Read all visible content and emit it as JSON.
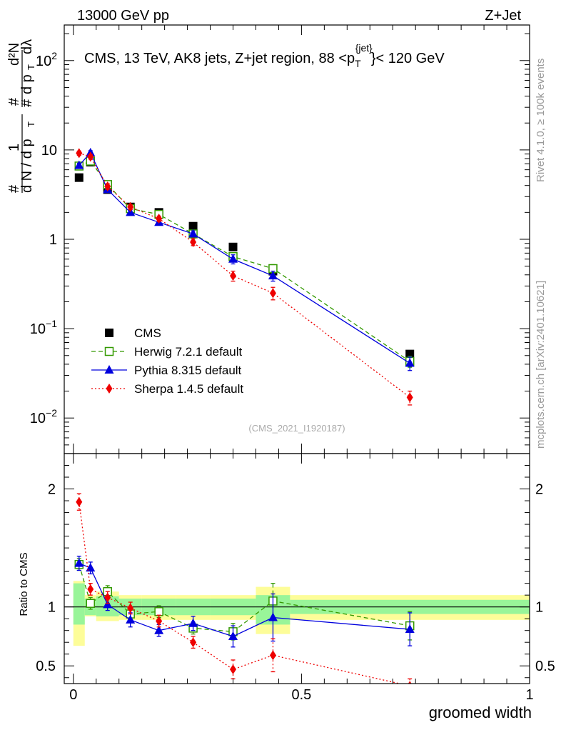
{
  "header": {
    "left": "13000 GeV pp",
    "right": "Z+Jet"
  },
  "side_text": {
    "rivet": "Rivet 4.1.0, ≥ 100k events",
    "mcplots": "mcplots.cern.ch [arXiv:2401.10621]"
  },
  "analysis_id": "(CMS_2021_I1920187)",
  "colors": {
    "cms": "#000000",
    "herwig": "#339900",
    "pythia": "#0000dd",
    "sherpa": "#ee0000",
    "band_inner": "#99f599",
    "band_outer": "#fdfd99"
  },
  "chart_data": [
    {
      "type": "line",
      "title": "CMS, 13 TeV, AK8 jets, Z+jet region, 88 < p_T^{jet} < 120 GeV",
      "title_text": {
        "main": "CMS, 13 TeV, AK8 jets, Z+jet region, 88 <",
        "p": "p",
        "sub": "T",
        "sup": "{jet}",
        "tail": "}< 120 GeV"
      },
      "ylabel": "1/dN/dp_T d^2N/dp_T dλ",
      "ylabel_text": {
        "n1": "#",
        "n2": "1",
        "d1": "d N / d p",
        "dsub": "T",
        "n3": "#",
        "n4": "d²N",
        "n5": "#",
        "d2": "d p",
        "d2sub": "T",
        "d3": "dλ"
      },
      "yscale": "log",
      "ylim": [
        0.004,
        250
      ],
      "xlim": [
        -0.02,
        1.0
      ],
      "y_ticks": [
        {
          "v": 0.01,
          "base": "10",
          "exp": "−2"
        },
        {
          "v": 0.1,
          "base": "10",
          "exp": "−1"
        },
        {
          "v": 1,
          "base": "1",
          "exp": ""
        },
        {
          "v": 10,
          "base": "10",
          "exp": ""
        },
        {
          "v": 100,
          "base": "10",
          "exp": "2"
        }
      ],
      "x": [
        0.0125,
        0.0375,
        0.075,
        0.125,
        0.1875,
        0.2625,
        0.35,
        0.4375,
        0.7375
      ],
      "xerr": [
        0.0125,
        0.0125,
        0.025,
        0.025,
        0.0375,
        0.0375,
        0.05,
        0.0375,
        0.2625
      ],
      "series": [
        {
          "name": "CMS",
          "key": "cms",
          "marker": "square",
          "values": [
            4.9,
            7.3,
            3.6,
            2.3,
            2.0,
            1.4,
            0.82,
            0.44,
            0.052
          ]
        },
        {
          "name": "Herwig 7.2.1 default",
          "key": "herwig",
          "marker": "open-square",
          "dash": "dashed",
          "values": [
            6.6,
            7.5,
            4.1,
            2.2,
            1.9,
            1.15,
            0.64,
            0.47,
            0.043
          ],
          "err": [
            0.4,
            0.4,
            0.25,
            0.15,
            0.12,
            0.08,
            0.06,
            0.05,
            0.006
          ]
        },
        {
          "name": "Pythia 8.315 default",
          "key": "pythia",
          "marker": "triangle",
          "dash": "solid",
          "values": [
            6.7,
            9.3,
            3.6,
            2.0,
            1.55,
            1.15,
            0.6,
            0.39,
            0.041
          ],
          "err": [
            0.4,
            0.5,
            0.25,
            0.14,
            0.11,
            0.09,
            0.07,
            0.05,
            0.007
          ]
        },
        {
          "name": "Sherpa 1.4.5 default",
          "key": "sherpa",
          "marker": "diamond",
          "dash": "dotted",
          "values": [
            9.2,
            8.4,
            3.9,
            2.3,
            1.7,
            0.93,
            0.39,
            0.25,
            0.017
          ],
          "err": [
            0.5,
            0.5,
            0.28,
            0.15,
            0.12,
            0.08,
            0.05,
            0.04,
            0.003
          ]
        }
      ],
      "legend": [
        {
          "label": "CMS",
          "key": "cms"
        },
        {
          "label": "Herwig 7.2.1 default",
          "key": "herwig"
        },
        {
          "label": "Pythia 8.315 default",
          "key": "pythia"
        },
        {
          "label": "Sherpa 1.4.5 default",
          "key": "sherpa"
        }
      ]
    },
    {
      "type": "line",
      "ylabel": "Ratio to CMS",
      "xlabel": "groomed width",
      "ylim": [
        0.35,
        2.3
      ],
      "xlim": [
        -0.02,
        1.0
      ],
      "reference": 1.0,
      "y_ticks": [
        {
          "v": 0.5,
          "label": "0.5"
        },
        {
          "v": 1,
          "label": "1"
        },
        {
          "v": 2,
          "label": "2"
        }
      ],
      "x_ticks": [
        {
          "v": 0,
          "label": "0"
        },
        {
          "v": 0.5,
          "label": "0.5"
        },
        {
          "v": 1,
          "label": "1"
        }
      ],
      "bands": [
        {
          "x0": 0.0,
          "x1": 0.025,
          "inner": [
            0.85,
            1.2
          ],
          "outer": [
            0.67,
            1.22
          ]
        },
        {
          "x0": 0.025,
          "x1": 0.05,
          "inner": [
            0.93,
            1.07
          ],
          "outer": [
            0.92,
            1.1
          ]
        },
        {
          "x0": 0.05,
          "x1": 0.1,
          "inner": [
            0.92,
            1.09
          ],
          "outer": [
            0.88,
            1.13
          ]
        },
        {
          "x0": 0.1,
          "x1": 0.15,
          "inner": [
            0.93,
            1.07
          ],
          "outer": [
            0.89,
            1.1
          ]
        },
        {
          "x0": 0.15,
          "x1": 0.225,
          "inner": [
            0.93,
            1.07
          ],
          "outer": [
            0.89,
            1.1
          ]
        },
        {
          "x0": 0.225,
          "x1": 0.3,
          "inner": [
            0.93,
            1.07
          ],
          "outer": [
            0.89,
            1.1
          ]
        },
        {
          "x0": 0.3,
          "x1": 0.4,
          "inner": [
            0.93,
            1.07
          ],
          "outer": [
            0.89,
            1.1
          ]
        },
        {
          "x0": 0.4,
          "x1": 0.475,
          "inner": [
            0.85,
            1.1
          ],
          "outer": [
            0.77,
            1.17
          ]
        },
        {
          "x0": 0.475,
          "x1": 1.0,
          "inner": [
            0.94,
            1.06
          ],
          "outer": [
            0.89,
            1.1
          ]
        }
      ],
      "x": [
        0.0125,
        0.0375,
        0.075,
        0.125,
        0.1875,
        0.2625,
        0.35,
        0.4375,
        0.7375
      ],
      "series": [
        {
          "name": "Herwig 7.2.1 default",
          "key": "herwig",
          "marker": "open-square",
          "dash": "dashed",
          "values": [
            1.36,
            1.03,
            1.13,
            0.94,
            0.96,
            0.82,
            0.79,
            1.05,
            0.84
          ],
          "err": [
            0.05,
            0.05,
            0.05,
            0.05,
            0.05,
            0.05,
            0.07,
            0.15,
            0.12
          ]
        },
        {
          "name": "Pythia 8.315 default",
          "key": "pythia",
          "marker": "triangle",
          "dash": "solid",
          "values": [
            1.37,
            1.33,
            1.02,
            0.89,
            0.8,
            0.86,
            0.75,
            0.91,
            0.81
          ],
          "err": [
            0.06,
            0.05,
            0.05,
            0.06,
            0.05,
            0.06,
            0.09,
            0.2,
            0.14
          ]
        },
        {
          "name": "Sherpa 1.4.5 default",
          "key": "sherpa",
          "marker": "diamond",
          "dash": "dotted",
          "values": [
            1.89,
            1.15,
            1.08,
            0.99,
            0.88,
            0.7,
            0.47,
            0.59,
            0.33
          ],
          "err": [
            0.07,
            0.05,
            0.05,
            0.05,
            0.05,
            0.05,
            0.08,
            0.14,
            0.06
          ]
        }
      ]
    }
  ]
}
